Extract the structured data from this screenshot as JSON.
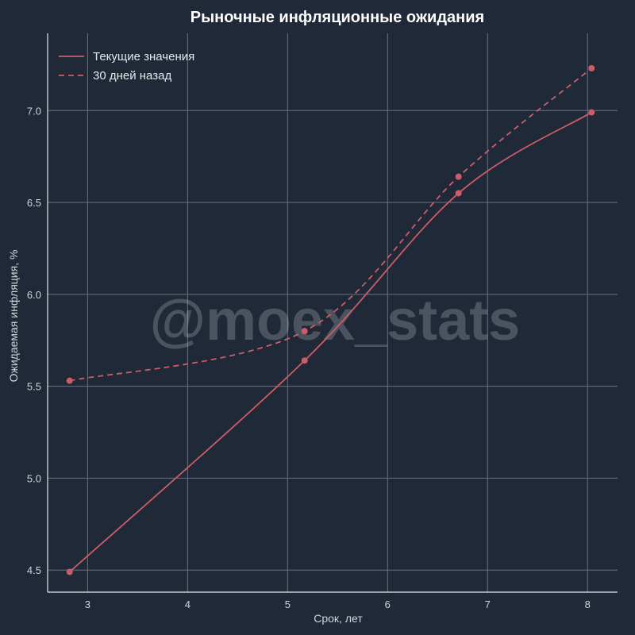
{
  "chart_data": {
    "type": "line",
    "title": "Рыночные инфляционные ожидания",
    "xlabel": "Срок, лет",
    "ylabel": "Ожидаемая инфляция, %",
    "xlim": [
      2.6,
      8.3
    ],
    "ylim": [
      4.38,
      7.42
    ],
    "x_ticks": [
      "3",
      "4",
      "5",
      "6",
      "7",
      "8"
    ],
    "y_ticks": [
      "4.5",
      "5.0",
      "5.5",
      "6.0",
      "6.5",
      "7.0"
    ],
    "grid": true,
    "legend_position": "top-left",
    "series": [
      {
        "name": "Текущие значения",
        "style": "solid",
        "color": "#cd5c6a",
        "points": [
          [
            2.82,
            4.49
          ],
          [
            5.17,
            5.64
          ],
          [
            6.71,
            6.55
          ],
          [
            8.04,
            6.99
          ]
        ]
      },
      {
        "name": "30 дней назад",
        "style": "dashed",
        "color": "#cd5c6a",
        "points": [
          [
            2.82,
            5.53
          ],
          [
            5.17,
            5.8
          ],
          [
            6.71,
            6.64
          ],
          [
            8.04,
            7.23
          ]
        ]
      }
    ],
    "watermark": "@moex_stats"
  },
  "colors": {
    "background": "#1f2937",
    "grid": "#6b7280",
    "axis": "#e5e7eb",
    "text": "#d1d5db"
  }
}
